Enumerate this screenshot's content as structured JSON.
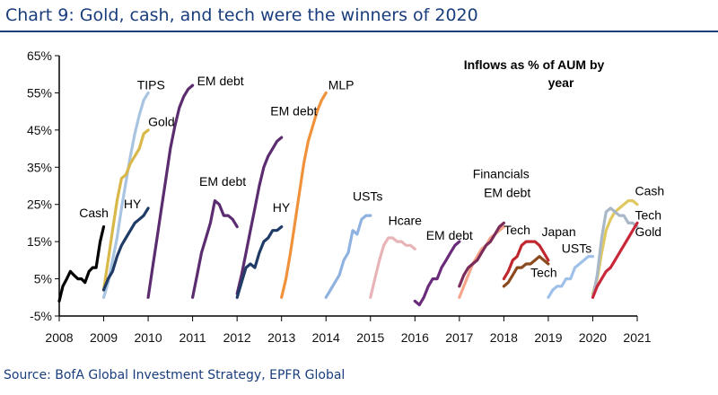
{
  "title": "Chart 9: Gold, cash, and tech were the winners of 2020",
  "source": "Source: BofA Global Investment Strategy, EPFR Global",
  "colors": {
    "title": "#1a3d7c",
    "axis": "#000000"
  },
  "chart_data": {
    "type": "line",
    "annotation": [
      "Inflows as % of AUM by",
      "year"
    ],
    "xlabel": "",
    "ylabel": "",
    "xlim": [
      2008,
      2021
    ],
    "ylim": [
      -5,
      65
    ],
    "x_ticks": [
      "2008",
      "2009",
      "2010",
      "2011",
      "2012",
      "2013",
      "2014",
      "2015",
      "2016",
      "2017",
      "2018",
      "2019",
      "2020",
      "2021"
    ],
    "y_ticks": [
      "65%",
      "55%",
      "45%",
      "35%",
      "25%",
      "15%",
      "5%",
      "-5%"
    ],
    "y_tick_values": [
      65,
      55,
      45,
      35,
      25,
      15,
      5,
      -5
    ],
    "grid": false,
    "series": [
      {
        "name": "Cash",
        "color": "#000000",
        "label_pos": [
          2008.45,
          21.5
        ],
        "points": [
          [
            2008.0,
            -1
          ],
          [
            2008.08,
            3
          ],
          [
            2008.17,
            5
          ],
          [
            2008.25,
            7
          ],
          [
            2008.33,
            6
          ],
          [
            2008.42,
            5
          ],
          [
            2008.5,
            5
          ],
          [
            2008.58,
            4
          ],
          [
            2008.67,
            7
          ],
          [
            2008.75,
            8
          ],
          [
            2008.83,
            8
          ],
          [
            2008.92,
            15
          ],
          [
            2009.0,
            19
          ]
        ]
      },
      {
        "name": "TIPS",
        "color": "#a8c4e0",
        "label_pos": [
          2009.75,
          56
        ],
        "points": [
          [
            2009.0,
            0
          ],
          [
            2009.1,
            4
          ],
          [
            2009.2,
            10
          ],
          [
            2009.3,
            16
          ],
          [
            2009.4,
            24
          ],
          [
            2009.5,
            31
          ],
          [
            2009.6,
            38
          ],
          [
            2009.7,
            44
          ],
          [
            2009.8,
            49
          ],
          [
            2009.9,
            53
          ],
          [
            2010.0,
            55
          ]
        ]
      },
      {
        "name": "Gold",
        "color": "#d9b84a",
        "label_pos": [
          2010.0,
          46
        ],
        "points": [
          [
            2009.0,
            2
          ],
          [
            2009.1,
            10
          ],
          [
            2009.2,
            18
          ],
          [
            2009.3,
            26
          ],
          [
            2009.4,
            32
          ],
          [
            2009.5,
            33
          ],
          [
            2009.6,
            36
          ],
          [
            2009.7,
            38
          ],
          [
            2009.8,
            40
          ],
          [
            2009.9,
            44
          ],
          [
            2010.0,
            45
          ]
        ]
      },
      {
        "name": "HY",
        "color": "#1f3b66",
        "label_pos": [
          2009.45,
          24
        ],
        "points": [
          [
            2009.0,
            2
          ],
          [
            2009.1,
            5
          ],
          [
            2009.2,
            7
          ],
          [
            2009.3,
            11
          ],
          [
            2009.4,
            14
          ],
          [
            2009.5,
            16
          ],
          [
            2009.6,
            18
          ],
          [
            2009.7,
            20
          ],
          [
            2009.8,
            21
          ],
          [
            2009.9,
            22
          ],
          [
            2010.0,
            24
          ]
        ]
      },
      {
        "name": "EM debt",
        "color": "#5b2c6f",
        "label_pos": [
          2011.1,
          57
        ],
        "points": [
          [
            2010.0,
            0
          ],
          [
            2010.1,
            8
          ],
          [
            2010.2,
            16
          ],
          [
            2010.3,
            24
          ],
          [
            2010.4,
            32
          ],
          [
            2010.5,
            40
          ],
          [
            2010.6,
            46
          ],
          [
            2010.7,
            51
          ],
          [
            2010.8,
            54
          ],
          [
            2010.9,
            56
          ],
          [
            2011.0,
            57
          ]
        ]
      },
      {
        "name": "EM debt",
        "color": "#5b2c6f",
        "label_pos": [
          2011.15,
          30
        ],
        "points": [
          [
            2011.0,
            0
          ],
          [
            2011.1,
            6
          ],
          [
            2011.2,
            12
          ],
          [
            2011.3,
            16
          ],
          [
            2011.4,
            20
          ],
          [
            2011.5,
            26
          ],
          [
            2011.6,
            25
          ],
          [
            2011.7,
            22
          ],
          [
            2011.8,
            22
          ],
          [
            2011.9,
            21
          ],
          [
            2012.0,
            19
          ]
        ]
      },
      {
        "name": "EM debt",
        "color": "#5b2c6f",
        "label_pos": [
          2012.75,
          49
        ],
        "points": [
          [
            2012.0,
            1
          ],
          [
            2012.1,
            6
          ],
          [
            2012.2,
            12
          ],
          [
            2012.3,
            18
          ],
          [
            2012.4,
            24
          ],
          [
            2012.5,
            30
          ],
          [
            2012.6,
            35
          ],
          [
            2012.7,
            38
          ],
          [
            2012.8,
            40
          ],
          [
            2012.9,
            42
          ],
          [
            2013.0,
            43
          ]
        ]
      },
      {
        "name": "HY",
        "color": "#1f3b66",
        "label_pos": [
          2012.8,
          23
        ],
        "points": [
          [
            2012.0,
            0
          ],
          [
            2012.1,
            4
          ],
          [
            2012.2,
            8
          ],
          [
            2012.3,
            9
          ],
          [
            2012.4,
            8
          ],
          [
            2012.5,
            12
          ],
          [
            2012.6,
            15
          ],
          [
            2012.7,
            16
          ],
          [
            2012.8,
            18
          ],
          [
            2012.9,
            18
          ],
          [
            2013.0,
            19
          ]
        ]
      },
      {
        "name": "MLP",
        "color": "#f0923b",
        "label_pos": [
          2014.05,
          56
        ],
        "points": [
          [
            2013.0,
            0
          ],
          [
            2013.1,
            5
          ],
          [
            2013.2,
            12
          ],
          [
            2013.3,
            20
          ],
          [
            2013.4,
            28
          ],
          [
            2013.5,
            36
          ],
          [
            2013.6,
            42
          ],
          [
            2013.7,
            46
          ],
          [
            2013.8,
            50
          ],
          [
            2013.9,
            53
          ],
          [
            2014.0,
            55
          ]
        ]
      },
      {
        "name": "USTs",
        "color": "#8fb2e0",
        "label_pos": [
          2014.6,
          26
        ],
        "points": [
          [
            2014.0,
            0
          ],
          [
            2014.1,
            2
          ],
          [
            2014.2,
            4
          ],
          [
            2014.3,
            6
          ],
          [
            2014.4,
            10
          ],
          [
            2014.5,
            12
          ],
          [
            2014.6,
            18
          ],
          [
            2014.7,
            17
          ],
          [
            2014.8,
            21
          ],
          [
            2014.9,
            22
          ],
          [
            2015.0,
            22
          ]
        ]
      },
      {
        "name": "Hcare",
        "color": "#e8b4b8",
        "label_pos": [
          2015.4,
          19.5
        ],
        "points": [
          [
            2015.0,
            0
          ],
          [
            2015.1,
            5
          ],
          [
            2015.2,
            10
          ],
          [
            2015.3,
            14
          ],
          [
            2015.4,
            16
          ],
          [
            2015.5,
            16
          ],
          [
            2015.6,
            15
          ],
          [
            2015.7,
            15
          ],
          [
            2015.8,
            14
          ],
          [
            2015.9,
            14
          ],
          [
            2016.0,
            13
          ]
        ]
      },
      {
        "name": "EM debt",
        "color": "#6a2c7a",
        "label_pos": [
          2016.25,
          15.5
        ],
        "points": [
          [
            2016.0,
            -1
          ],
          [
            2016.1,
            -2
          ],
          [
            2016.2,
            0
          ],
          [
            2016.3,
            3
          ],
          [
            2016.4,
            5
          ],
          [
            2016.5,
            5
          ],
          [
            2016.6,
            8
          ],
          [
            2016.7,
            10
          ],
          [
            2016.8,
            12
          ],
          [
            2016.9,
            14
          ],
          [
            2017.0,
            15
          ]
        ]
      },
      {
        "name": "Financials",
        "color": "#f4a58a",
        "label_pos": [
          2017.3,
          32
        ],
        "points": [
          [
            2017.0,
            0
          ],
          [
            2017.1,
            3
          ],
          [
            2017.2,
            6
          ],
          [
            2017.3,
            9
          ],
          [
            2017.4,
            11
          ],
          [
            2017.5,
            13
          ],
          [
            2017.6,
            14
          ],
          [
            2017.7,
            16
          ],
          [
            2017.8,
            17
          ],
          [
            2017.9,
            18
          ],
          [
            2018.0,
            19
          ]
        ]
      },
      {
        "name": "EM debt",
        "color": "#7b2c5a",
        "label_pos": [
          2017.55,
          27
        ],
        "points": [
          [
            2017.0,
            3
          ],
          [
            2017.1,
            6
          ],
          [
            2017.2,
            8
          ],
          [
            2017.3,
            9
          ],
          [
            2017.4,
            10
          ],
          [
            2017.5,
            12
          ],
          [
            2017.6,
            14
          ],
          [
            2017.7,
            15
          ],
          [
            2017.8,
            17
          ],
          [
            2017.9,
            19
          ],
          [
            2018.0,
            20
          ]
        ]
      },
      {
        "name": "Tech",
        "color": "#c0282f",
        "label_pos": [
          2018.0,
          17
        ],
        "points": [
          [
            2018.0,
            5
          ],
          [
            2018.1,
            7
          ],
          [
            2018.2,
            10
          ],
          [
            2018.3,
            11
          ],
          [
            2018.4,
            14
          ],
          [
            2018.5,
            15
          ],
          [
            2018.6,
            15
          ],
          [
            2018.7,
            15
          ],
          [
            2018.8,
            14
          ],
          [
            2018.9,
            12
          ],
          [
            2019.0,
            10
          ]
        ]
      },
      {
        "name": "Tech",
        "color": "#8b4a1f",
        "label_pos": [
          2018.6,
          5.5
        ],
        "points": [
          [
            2018.0,
            3
          ],
          [
            2018.1,
            4
          ],
          [
            2018.2,
            6
          ],
          [
            2018.3,
            8
          ],
          [
            2018.4,
            8
          ],
          [
            2018.5,
            9
          ],
          [
            2018.6,
            9
          ],
          [
            2018.7,
            10
          ],
          [
            2018.8,
            11
          ],
          [
            2018.9,
            10
          ],
          [
            2019.0,
            9
          ]
        ]
      },
      {
        "name": "Japan",
        "color": "#b5602a",
        "label_pos": [
          2018.85,
          16.5
        ],
        "points": []
      },
      {
        "name": "USTs",
        "color": "#9fc0e8",
        "label_pos": [
          2019.3,
          12
        ],
        "points": [
          [
            2019.0,
            0
          ],
          [
            2019.1,
            2
          ],
          [
            2019.2,
            3
          ],
          [
            2019.3,
            3
          ],
          [
            2019.4,
            5
          ],
          [
            2019.5,
            5
          ],
          [
            2019.6,
            8
          ],
          [
            2019.7,
            9
          ],
          [
            2019.8,
            10
          ],
          [
            2019.9,
            11
          ],
          [
            2020.0,
            11
          ]
        ]
      },
      {
        "name": "Cash",
        "color": "#e0c860",
        "label_pos": [
          2020.95,
          27.5
        ],
        "points": [
          [
            2020.0,
            1
          ],
          [
            2020.1,
            5
          ],
          [
            2020.2,
            12
          ],
          [
            2020.3,
            18
          ],
          [
            2020.4,
            21
          ],
          [
            2020.5,
            23
          ],
          [
            2020.6,
            24
          ],
          [
            2020.7,
            25
          ],
          [
            2020.8,
            26
          ],
          [
            2020.9,
            26
          ],
          [
            2021.0,
            25
          ]
        ]
      },
      {
        "name": "Tech",
        "color": "#a8b8c8",
        "label_pos": [
          2020.95,
          21
        ],
        "points": [
          [
            2020.0,
            0
          ],
          [
            2020.1,
            6
          ],
          [
            2020.2,
            16
          ],
          [
            2020.3,
            23
          ],
          [
            2020.4,
            24
          ],
          [
            2020.5,
            23
          ],
          [
            2020.6,
            22
          ],
          [
            2020.7,
            22
          ],
          [
            2020.8,
            20
          ],
          [
            2020.9,
            20
          ],
          [
            2021.0,
            19
          ]
        ]
      },
      {
        "name": "Gold",
        "color": "#c8283a",
        "label_pos": [
          2020.95,
          16.5
        ],
        "points": [
          [
            2020.0,
            0
          ],
          [
            2020.1,
            3
          ],
          [
            2020.2,
            5
          ],
          [
            2020.3,
            7
          ],
          [
            2020.4,
            8
          ],
          [
            2020.5,
            10
          ],
          [
            2020.6,
            12
          ],
          [
            2020.7,
            14
          ],
          [
            2020.8,
            16
          ],
          [
            2020.9,
            18
          ],
          [
            2021.0,
            20
          ]
        ]
      }
    ]
  }
}
